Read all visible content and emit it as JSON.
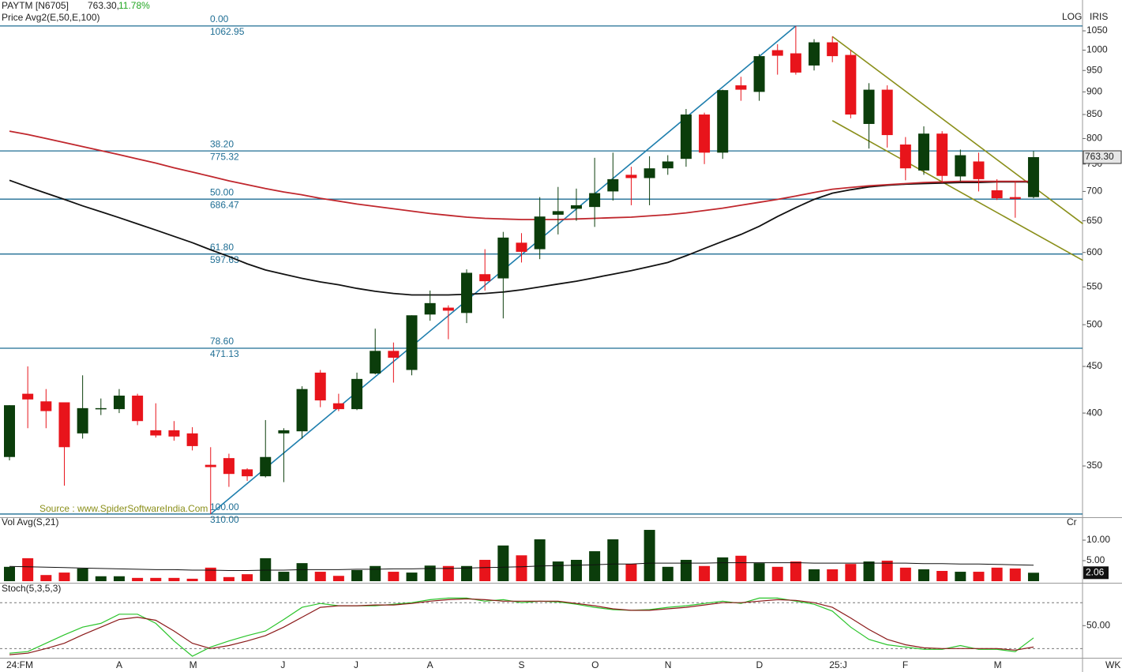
{
  "chart_data": [
    {
      "type": "candlestick",
      "title": "PAYTM [N6705]",
      "last": "763.30,",
      "change": "11.78%",
      "subtitle": "Price  Avg2(E,50,E,100)",
      "scale_label": "LOG",
      "indicator": "IRIS",
      "price_tag": "763.30",
      "source": "Source : www.SpiderSoftwareIndia.Com",
      "log_scale": true,
      "up_color": "#0b3d0b",
      "down_color": "#e8141b",
      "categories": [
        "24:FM",
        null,
        null,
        null,
        null,
        null,
        "A",
        null,
        null,
        null,
        "M",
        null,
        null,
        null,
        null,
        "J",
        null,
        null,
        null,
        "J",
        null,
        null,
        null,
        "A",
        null,
        null,
        null,
        null,
        "S",
        null,
        null,
        null,
        "O",
        null,
        null,
        null,
        "N",
        null,
        null,
        null,
        null,
        "D",
        null,
        null,
        null,
        "25:J",
        null,
        null,
        null,
        "F",
        null,
        null,
        null,
        null,
        "M",
        null,
        null
      ],
      "open": [
        358,
        420,
        412,
        411,
        380,
        405,
        404,
        418,
        383,
        383,
        380,
        351,
        357,
        347,
        341,
        380,
        382,
        443,
        410,
        404,
        442,
        468,
        446,
        513,
        522,
        515,
        568,
        562,
        615,
        605,
        660,
        670,
        673,
        700,
        730,
        724,
        742,
        760,
        850,
        772,
        915,
        900,
        1000,
        992,
        962,
        1020,
        988,
        830,
        905,
        788,
        738,
        810,
        727,
        755,
        702,
        690,
        690
      ],
      "high": [
        408,
        450,
        425,
        411,
        440,
        415,
        425,
        420,
        410,
        392,
        386,
        367,
        361,
        348,
        393,
        385,
        428,
        446,
        420,
        443,
        495,
        478,
        512,
        545,
        525,
        575,
        605,
        632,
        630,
        690,
        708,
        705,
        762,
        772,
        745,
        765,
        767,
        862,
        854,
        905,
        935,
        990,
        1015,
        1062.95,
        1028,
        1035,
        1000,
        920,
        915,
        803,
        825,
        815,
        778,
        772,
        722,
        718,
        775
      ],
      "low": [
        355,
        385,
        385,
        333,
        375,
        398,
        400,
        388,
        376,
        373,
        364,
        310,
        332,
        337,
        340,
        336,
        375,
        406,
        402,
        403,
        441,
        432,
        440,
        505,
        482,
        502,
        545,
        508,
        585,
        590,
        628,
        650,
        640,
        684,
        676,
        676,
        730,
        745,
        750,
        760,
        880,
        880,
        940,
        940,
        950,
        970,
        842,
        780,
        782,
        720,
        730,
        715,
        718,
        700,
        685,
        655,
        688
      ],
      "close": [
        408,
        414,
        402,
        367,
        405,
        405,
        418,
        392,
        378,
        377,
        368,
        349,
        343,
        341,
        358,
        383,
        425,
        413,
        404,
        436,
        468,
        460,
        512,
        528,
        518,
        570,
        558,
        623,
        601,
        657,
        666,
        676,
        697,
        722,
        724,
        742,
        755,
        850,
        772,
        904,
        905,
        985,
        986,
        945,
        1020,
        985,
        850,
        905,
        807,
        742,
        810,
        728,
        767,
        722,
        688,
        687,
        763.3
      ],
      "series": [
        {
          "color": "#111111",
          "values": [
            720,
            708,
            697,
            686,
            675,
            665,
            655,
            645,
            635,
            625,
            615,
            604,
            594,
            583,
            574,
            568,
            562,
            557,
            553,
            548,
            544,
            541,
            539,
            539,
            539,
            540,
            541,
            543,
            546,
            550,
            554,
            558,
            563,
            568,
            573,
            579,
            585,
            595,
            606,
            617,
            628,
            641,
            657,
            672,
            686,
            697,
            703,
            708,
            711,
            713,
            714,
            715,
            716,
            716,
            717,
            717,
            717
          ]
        },
        {
          "color": "#c0272d",
          "values": [
            815,
            808,
            800,
            792,
            784,
            776,
            768,
            760,
            752,
            743,
            735,
            727,
            719,
            712,
            705,
            699,
            694,
            688,
            683,
            678,
            674,
            670,
            666,
            662,
            659,
            656,
            654,
            653,
            652,
            652,
            652,
            653,
            654,
            655,
            656,
            658,
            660,
            663,
            667,
            671,
            676,
            681,
            686,
            692,
            698,
            704,
            707,
            710,
            712,
            714,
            716,
            717,
            718,
            718,
            718,
            718,
            718
          ]
        }
      ],
      "fib_levels": [
        {
          "pct": "0.00",
          "price": "1062.95",
          "value": 1062.95
        },
        {
          "pct": "38.20",
          "price": "775.32",
          "value": 775.32
        },
        {
          "pct": "50.00",
          "price": "686.47",
          "value": 686.47
        },
        {
          "pct": "61.80",
          "price": "597.63",
          "value": 597.63
        },
        {
          "pct": "78.60",
          "price": "471.13",
          "value": 471.13
        },
        {
          "pct": "100.00",
          "price": "310.00",
          "value": 310
        }
      ],
      "fib_color": "#1f6e94",
      "trendlines": [
        {
          "color": "#1f7fae",
          "x": [
            11,
            43
          ],
          "y": [
            310,
            1062.95
          ]
        },
        {
          "color": "#8a8f1a",
          "x": [
            45,
            58.7
          ],
          "y": [
            1035,
            645
          ]
        },
        {
          "color": "#8a8f1a",
          "x": [
            45,
            58.7
          ],
          "y": [
            837,
            588
          ]
        }
      ],
      "ylim": [
        307.5,
        1135
      ],
      "yticks": [
        350,
        400,
        450,
        500,
        550,
        600,
        650,
        700,
        750,
        800,
        850,
        900,
        950,
        1000,
        1050
      ]
    },
    {
      "type": "bar",
      "title": "Vol  Avg(S,21)",
      "corner_label": "Cr",
      "value_tag": "2.06",
      "values": [
        3.5,
        5.6,
        1.5,
        2.1,
        3.1,
        1.2,
        1.2,
        0.8,
        0.8,
        0.8,
        0.6,
        3.3,
        1.0,
        1.7,
        5.6,
        2.3,
        4.4,
        2.3,
        1.3,
        2.7,
        3.7,
        2.3,
        2.1,
        3.8,
        3.7,
        3.7,
        5.2,
        8.7,
        6.3,
        10.2,
        4.8,
        5.2,
        7.3,
        10.2,
        4.2,
        12.5,
        3.5,
        5.2,
        3.7,
        5.8,
        6.2,
        4.4,
        3.5,
        4.8,
        2.9,
        2.9,
        4.2,
        4.8,
        5.0,
        3.3,
        2.9,
        2.5,
        2.3,
        2.3,
        3.3,
        3.1,
        2.06
      ],
      "series": [
        {
          "color": "#111111",
          "values": [
            3.6,
            3.5,
            3.4,
            3.3,
            3.2,
            3.1,
            3.0,
            2.9,
            2.8,
            2.8,
            2.7,
            2.7,
            2.6,
            2.6,
            2.7,
            2.7,
            2.8,
            2.8,
            2.8,
            2.9,
            2.9,
            3.0,
            3.0,
            3.1,
            3.1,
            3.2,
            3.3,
            3.4,
            3.5,
            3.7,
            3.8,
            3.9,
            4.0,
            4.2,
            4.2,
            4.4,
            4.4,
            4.4,
            4.4,
            4.5,
            4.5,
            4.5,
            4.5,
            4.5,
            4.4,
            4.4,
            4.4,
            4.4,
            4.4,
            4.4,
            4.3,
            4.3,
            4.2,
            4.2,
            4.1,
            4.0,
            3.9
          ]
        }
      ],
      "ylim": [
        0,
        15.2
      ],
      "yticks": [
        {
          "value": 5,
          "label": "5.00"
        },
        {
          "value": 10,
          "label": "10.00"
        }
      ]
    },
    {
      "type": "line",
      "title": "Stoch(5,3,5,3)",
      "x_unit": "WK",
      "series": [
        {
          "color": "#2bc42b",
          "values": [
            14,
            16,
            27,
            38,
            48,
            53,
            65,
            65,
            53,
            30,
            10,
            22,
            30,
            37,
            43,
            58,
            74,
            79,
            76,
            76,
            76,
            78,
            80,
            84,
            86,
            86,
            82,
            84,
            80,
            82,
            81,
            78,
            74,
            71,
            70,
            71,
            74,
            76,
            79,
            82,
            79,
            86,
            86,
            82,
            78,
            69,
            48,
            32,
            25,
            22,
            19,
            19,
            24,
            19,
            19,
            16,
            34
          ]
        },
        {
          "color": "#8b1a1a",
          "values": [
            12,
            14,
            20,
            27,
            38,
            48,
            58,
            61,
            57,
            43,
            27,
            20,
            24,
            30,
            37,
            48,
            61,
            74,
            76,
            76,
            77,
            77,
            79,
            82,
            84,
            85,
            84,
            82,
            82,
            82,
            82,
            79,
            76,
            72,
            70,
            70,
            72,
            74,
            77,
            80,
            80,
            82,
            84,
            83,
            80,
            74,
            60,
            45,
            32,
            25,
            21,
            20,
            20,
            20,
            20,
            18,
            22
          ]
        }
      ],
      "levels": [
        20,
        80
      ],
      "ylim": [
        9,
        104
      ],
      "yticks": [
        {
          "value": 50,
          "label": "50.00"
        }
      ]
    }
  ]
}
